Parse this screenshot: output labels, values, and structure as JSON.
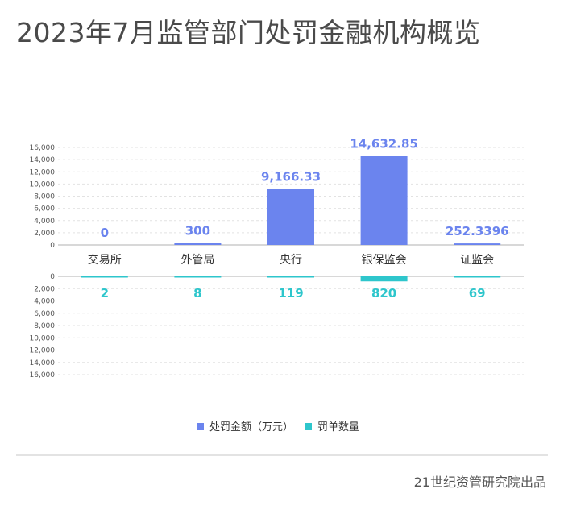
{
  "title": "2023年7月监管部门处罚金融机构概览",
  "source": "21世纪资管研究院出品",
  "colors": {
    "amount": "#6b84ee",
    "count": "#2ec6cc",
    "grid": "#e2e2e2",
    "axis": "#b0b0b0"
  },
  "chart_data": {
    "type": "bar",
    "categories": [
      "交易所",
      "外管局",
      "央行",
      "银保监会",
      "证监会"
    ],
    "series": [
      {
        "name": "处罚金额（万元）",
        "values": [
          0,
          300,
          9166.33,
          14632.85,
          252.3396
        ],
        "labels": [
          "0",
          "300",
          "9,166.33",
          "14,632.85",
          "252.3396"
        ]
      },
      {
        "name": "罚单数量",
        "values": [
          2,
          8,
          119,
          820,
          69
        ],
        "labels": [
          "2",
          "8",
          "119",
          "820",
          "69"
        ]
      }
    ],
    "top_axis": {
      "range": [
        0,
        16000
      ],
      "ticks": [
        "0",
        "2,000",
        "4,000",
        "6,000",
        "8,000",
        "10,000",
        "12,000",
        "14,000",
        "16,000"
      ]
    },
    "bottom_axis": {
      "range": [
        0,
        16000
      ],
      "ticks": [
        "0",
        "2,000",
        "4,000",
        "6,000",
        "8,000",
        "10,000",
        "12,000",
        "14,000",
        "16,000"
      ]
    },
    "grid": true,
    "legend_position": "bottom-center"
  }
}
